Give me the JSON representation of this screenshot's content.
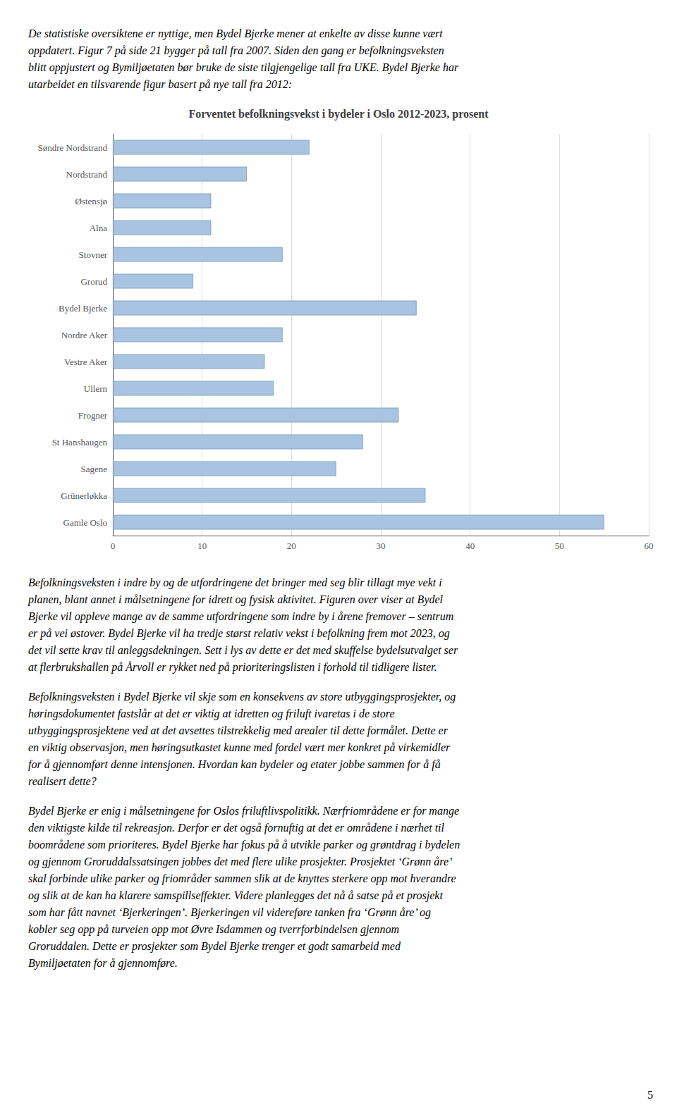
{
  "chart_data": {
    "type": "bar",
    "orientation": "horizontal",
    "title": "Forventet befolkningsvekst i bydeler i Oslo 2012-2023, prosent",
    "categories": [
      "Søndre Nordstrand",
      "Nordstrand",
      "Østensjø",
      "Alna",
      "Stovner",
      "Grorud",
      "Bydel Bjerke",
      "Nordre Aker",
      "Vestre Aker",
      "Ullern",
      "Frogner",
      "St Hanshaugen",
      "Sagene",
      "Grünerløkka",
      "Gamle Oslo"
    ],
    "values": [
      22,
      15,
      11,
      11,
      19,
      9,
      34,
      19,
      17,
      18,
      32,
      28,
      25,
      35,
      55
    ],
    "color": "#a8c4e0",
    "xlim": [
      0,
      60
    ],
    "xticks": [
      0,
      10,
      20,
      30,
      40,
      50,
      60
    ],
    "grid": true,
    "annotations": {
      "intro": [
        "De statistiske oversiktene er nyttige, men Bydel Bjerke mener at enkelte av disse kunne vært",
        "oppdatert. Figur 7 på side 21 bygger på tall fra 2007. Siden den gang er befolkningsveksten",
        "blitt oppjustert og Bymiljøetaten bør bruke de siste tilgjengelige tall fra UKE. Bydel Bjerke har",
        "utarbeidet en tilsvarende figur basert på nye tall fra 2012:"
      ],
      "paragraphs": [
        [
          "Befolkningsveksten i indre by og de utfordringene det bringer med seg blir tillagt mye vekt i",
          "planen, blant annet i målsetningene for idrett og fysisk aktivitet. Figuren over viser at Bydel",
          "Bjerke vil oppleve mange av de samme utfordringene som indre by i årene fremover – sentrum",
          "er på vei østover. Bydel Bjerke vil ha tredje størst relativ vekst i befolkning frem mot 2023, og",
          "det vil sette krav til anleggsdekningen. Sett i lys av dette er det med skuffelse bydelsutvalget ser",
          "at flerbrukshallen på Årvoll er rykket ned på prioriteringslisten i forhold til tidligere lister."
        ],
        [
          "Befolkningsveksten i Bydel Bjerke vil skje som en konsekvens av store utbyggingsprosjekter, og",
          "høringsdokumentet fastslår at det er viktig at idretten og friluft ivaretas i de store",
          "utbyggingsprosjektene ved at det avsettes tilstrekkelig med arealer til dette formålet. Dette er",
          "en viktig observasjon, men høringsutkastet kunne med fordel vært mer konkret på virkemidler",
          "for å gjennomført denne intensjonen. Hvordan kan bydeler og etater jobbe sammen for å få",
          "realisert dette?"
        ],
        [
          "Bydel Bjerke er enig i målsetningene for Oslos friluftlivspolitikk. Nærfriområdene er for mange",
          "den viktigste kilde til rekreasjon. Derfor er det også fornuftig at det er områdene i nærhet til",
          "boområdene som prioriteres. Bydel Bjerke har fokus på å utvikle parker og grøntdrag i bydelen",
          "og gjennom Groruddalssatsingen jobbes det med flere ulike prosjekter. Prosjektet ‘Grønn åre’",
          "skal forbinde ulike parker og friområder sammen slik at de knyttes sterkere opp mot hverandre",
          "og slik at de kan ha klarere samspillseffekter. Videre planlegges det nå å satse på et prosjekt",
          "som har fått navnet ‘Bjerkeringen’. Bjerkeringen vil videreføre tanken fra ‘Grønn åre’ og",
          "kobler seg opp på turveien opp mot Øvre Isdammen og tverrforbindelsen gjennom",
          "Groruddalen. Dette er prosjekter som Bydel Bjerke trenger et godt samarbeid med",
          "Bymiljøetaten for å gjennomføre."
        ]
      ],
      "page_number": "5"
    }
  }
}
